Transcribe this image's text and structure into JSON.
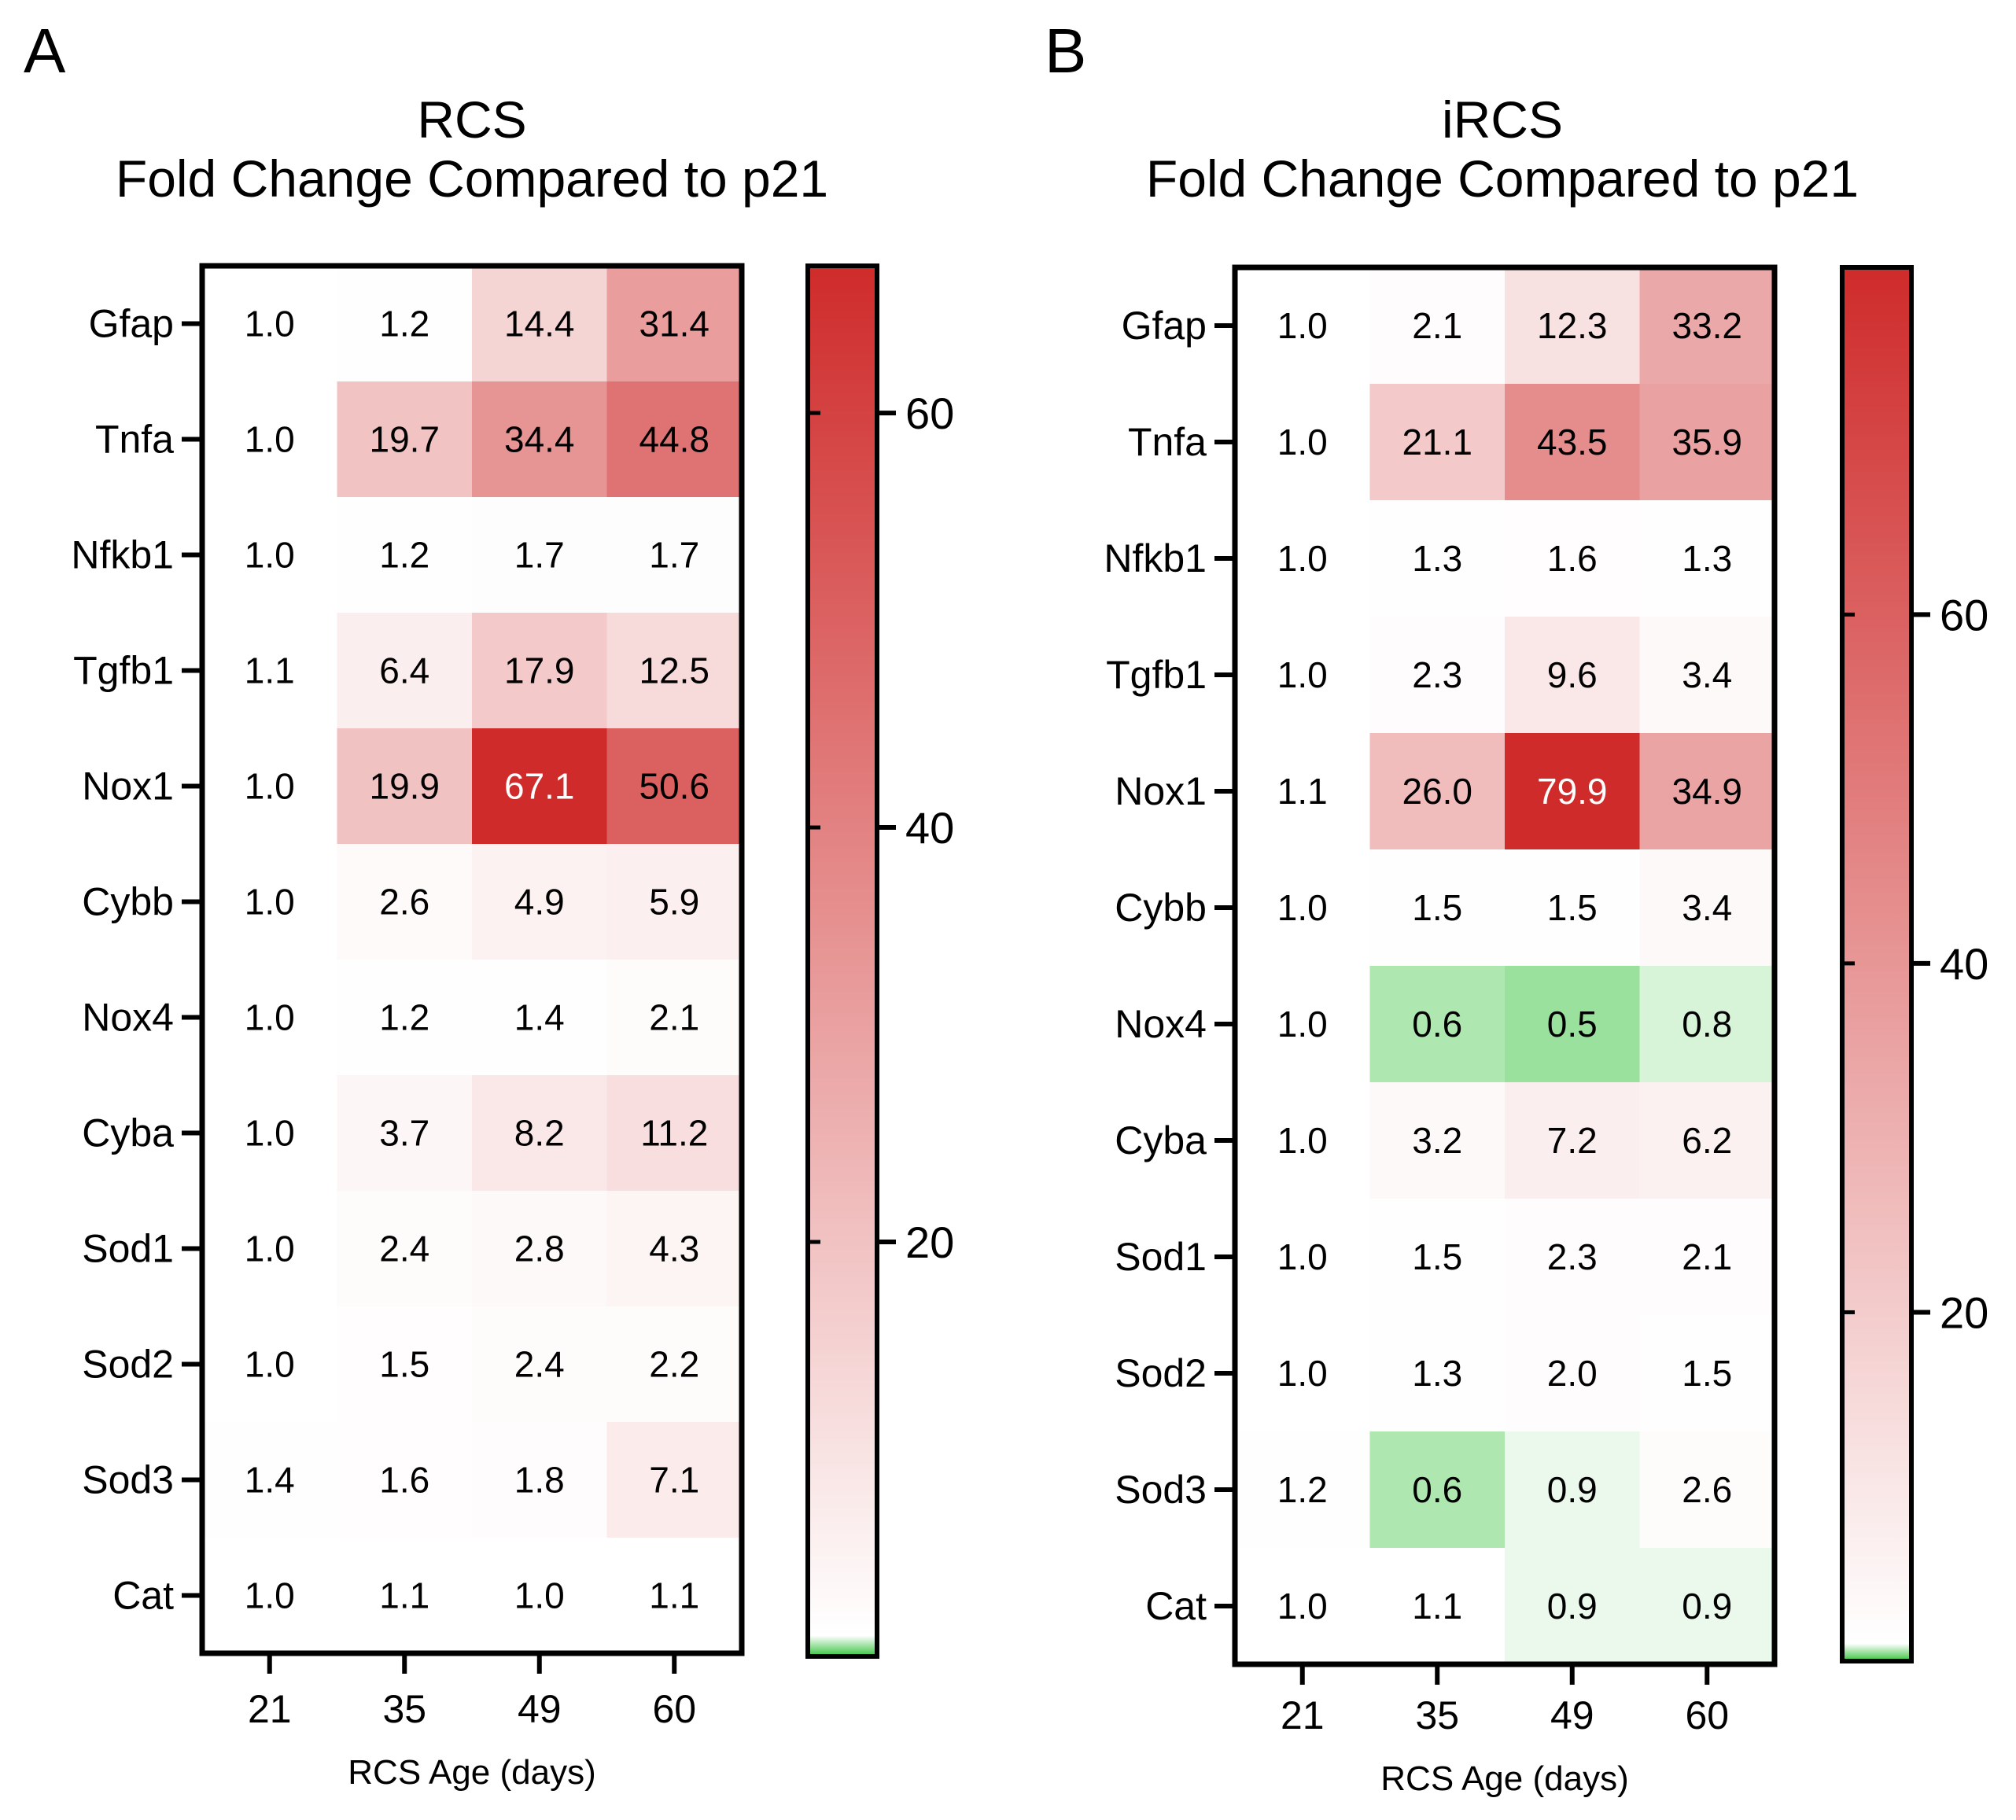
{
  "colors": {
    "high": "#cf2b2b",
    "mid": "#ffffff",
    "low": "#36c23c",
    "text_dark": "#000000",
    "text_light": "#ffffff",
    "frame": "#000000"
  },
  "chart_data": [
    {
      "type": "heatmap",
      "panel": "A",
      "title": [
        "RCS",
        "Fold Change Compared to p21"
      ],
      "rows": [
        "Gfap",
        "Tnfa",
        "Nfkb1",
        "Tgfb1",
        "Nox1",
        "Cybb",
        "Nox4",
        "Cyba",
        "Sod1",
        "Sod2",
        "Sod3",
        "Cat"
      ],
      "columns": [
        "21",
        "35",
        "49",
        "60"
      ],
      "xlabel": "RCS Age (days)",
      "values": [
        [
          1.0,
          1.2,
          14.4,
          31.4
        ],
        [
          1.0,
          19.7,
          34.4,
          44.8
        ],
        [
          1.0,
          1.2,
          1.7,
          1.7
        ],
        [
          1.1,
          6.4,
          17.9,
          12.5
        ],
        [
          1.0,
          19.9,
          67.1,
          50.6
        ],
        [
          1.0,
          2.6,
          4.9,
          5.9
        ],
        [
          1.0,
          1.2,
          1.4,
          2.1
        ],
        [
          1.0,
          3.7,
          8.2,
          11.2
        ],
        [
          1.0,
          2.4,
          2.8,
          4.3
        ],
        [
          1.0,
          1.5,
          2.4,
          2.2
        ],
        [
          1.4,
          1.6,
          1.8,
          7.1
        ],
        [
          1.0,
          1.1,
          1.0,
          1.1
        ]
      ],
      "colorbar": {
        "min": 0,
        "max": 67.1,
        "ticks": [
          20,
          40,
          60
        ],
        "gradient": [
          [
            0,
            "#36c23c"
          ],
          [
            1,
            "#ffffff"
          ],
          [
            67.1,
            "#cf2b2b"
          ]
        ]
      },
      "grid": false,
      "legend": "colorbar right"
    },
    {
      "type": "heatmap",
      "panel": "B",
      "title": [
        "iRCS",
        "Fold Change Compared to p21"
      ],
      "rows": [
        "Gfap",
        "Tnfa",
        "Nfkb1",
        "Tgfb1",
        "Nox1",
        "Cybb",
        "Nox4",
        "Cyba",
        "Sod1",
        "Sod2",
        "Sod3",
        "Cat"
      ],
      "columns": [
        "21",
        "35",
        "49",
        "60"
      ],
      "xlabel": "RCS Age (days)",
      "values": [
        [
          1.0,
          2.1,
          12.3,
          33.2
        ],
        [
          1.0,
          21.1,
          43.5,
          35.9
        ],
        [
          1.0,
          1.3,
          1.6,
          1.3
        ],
        [
          1.0,
          2.3,
          9.6,
          3.4
        ],
        [
          1.1,
          26.0,
          79.9,
          34.9
        ],
        [
          1.0,
          1.5,
          1.5,
          3.4
        ],
        [
          1.0,
          0.6,
          0.5,
          0.8
        ],
        [
          1.0,
          3.2,
          7.2,
          6.2
        ],
        [
          1.0,
          1.5,
          2.3,
          2.1
        ],
        [
          1.0,
          1.3,
          2.0,
          1.5
        ],
        [
          1.2,
          0.6,
          0.9,
          2.6
        ],
        [
          1.0,
          1.1,
          0.9,
          0.9
        ]
      ],
      "colorbar": {
        "min": 0,
        "max": 79.9,
        "ticks": [
          20,
          40,
          60
        ],
        "gradient": [
          [
            0,
            "#36c23c"
          ],
          [
            1,
            "#ffffff"
          ],
          [
            79.9,
            "#cf2b2b"
          ]
        ]
      },
      "grid": false,
      "legend": "colorbar right"
    }
  ]
}
